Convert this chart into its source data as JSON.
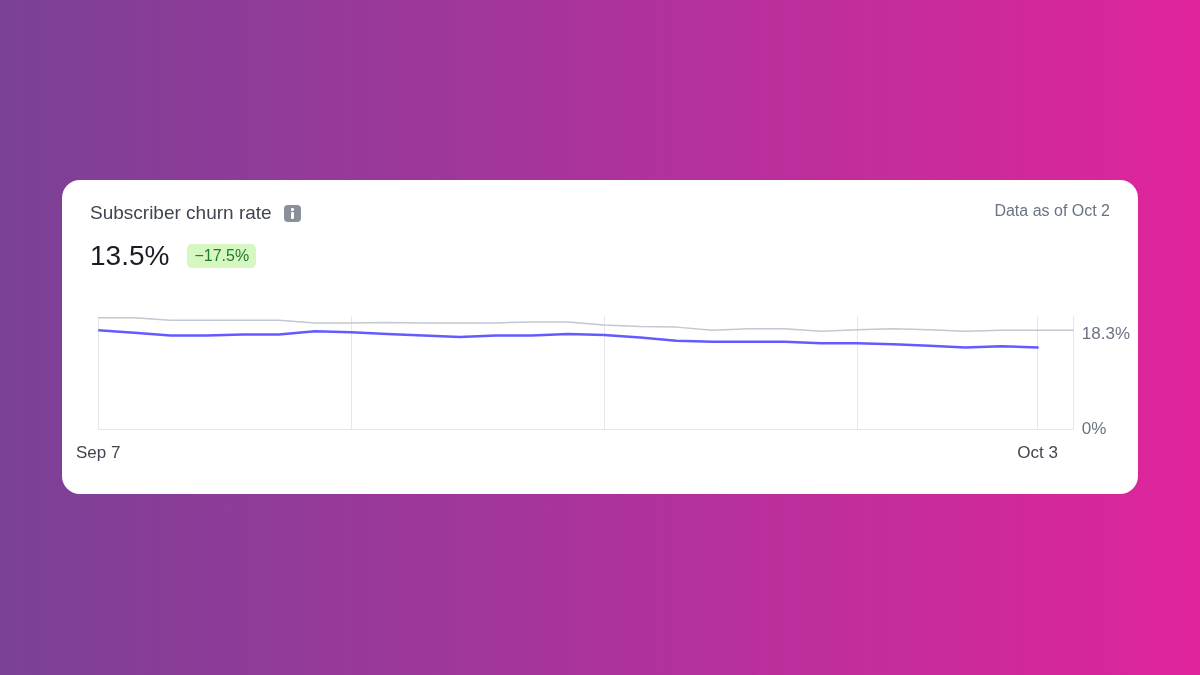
{
  "chart_data": {
    "type": "line",
    "title": "Subscriber churn rate",
    "subtitle": "13.5%",
    "annotations": [
      "−17.5%",
      "Data as of Oct 2"
    ],
    "x": [
      "--09-07",
      "--09-08",
      "--09-09",
      "--09-10",
      "--09-11",
      "--09-12",
      "--09-13",
      "--09-14",
      "--09-15",
      "--09-16",
      "--09-17",
      "--09-18",
      "--09-19",
      "--09-20",
      "--09-21",
      "--09-22",
      "--09-23",
      "--09-24",
      "--09-25",
      "--09-26",
      "--09-27",
      "--09-28",
      "--09-29",
      "--09-30",
      "--10-01",
      "--10-02",
      "--10-03",
      "--10-04"
    ],
    "series": [
      {
        "color": "#c1c9d2",
        "values": [
          21.5,
          21.5,
          21.0,
          21.0,
          21.0,
          21.0,
          20.5,
          20.5,
          20.6,
          20.5,
          20.5,
          20.5,
          20.7,
          20.7,
          20.1,
          19.8,
          19.7,
          19.1,
          19.4,
          19.4,
          18.9,
          19.2,
          19.4,
          19.2,
          18.9,
          19.1,
          19.1,
          19.1
        ]
      },
      {
        "color": "#635bff",
        "values": [
          19.1,
          18.6,
          18.1,
          18.1,
          18.3,
          18.3,
          18.9,
          18.7,
          18.4,
          18.1,
          17.8,
          18.1,
          18.1,
          18.4,
          18.2,
          17.7,
          17.1,
          16.9,
          16.9,
          16.9,
          16.6,
          16.6,
          16.4,
          16.1,
          15.8,
          16.0,
          15.8,
          null
        ]
      }
    ],
    "xlim": [
      "--09-07",
      "--10-04"
    ],
    "xticks": [
      {
        "value": "--09-07",
        "label": "Sep 7"
      },
      {
        "value": "--09-14",
        "label": null
      },
      {
        "value": "--09-21",
        "label": null
      },
      {
        "value": "--09-28",
        "label": null
      },
      {
        "value": "--10-03",
        "label": "Oct 3"
      }
    ],
    "ylim": [
      0,
      21.8
    ],
    "yticks": [
      {
        "value": 0,
        "label": "0%"
      },
      {
        "value": 18.3,
        "label": "18.3%"
      }
    ],
    "grid": "x",
    "legend": false,
    "marker": "none",
    "line_style": "solid"
  }
}
